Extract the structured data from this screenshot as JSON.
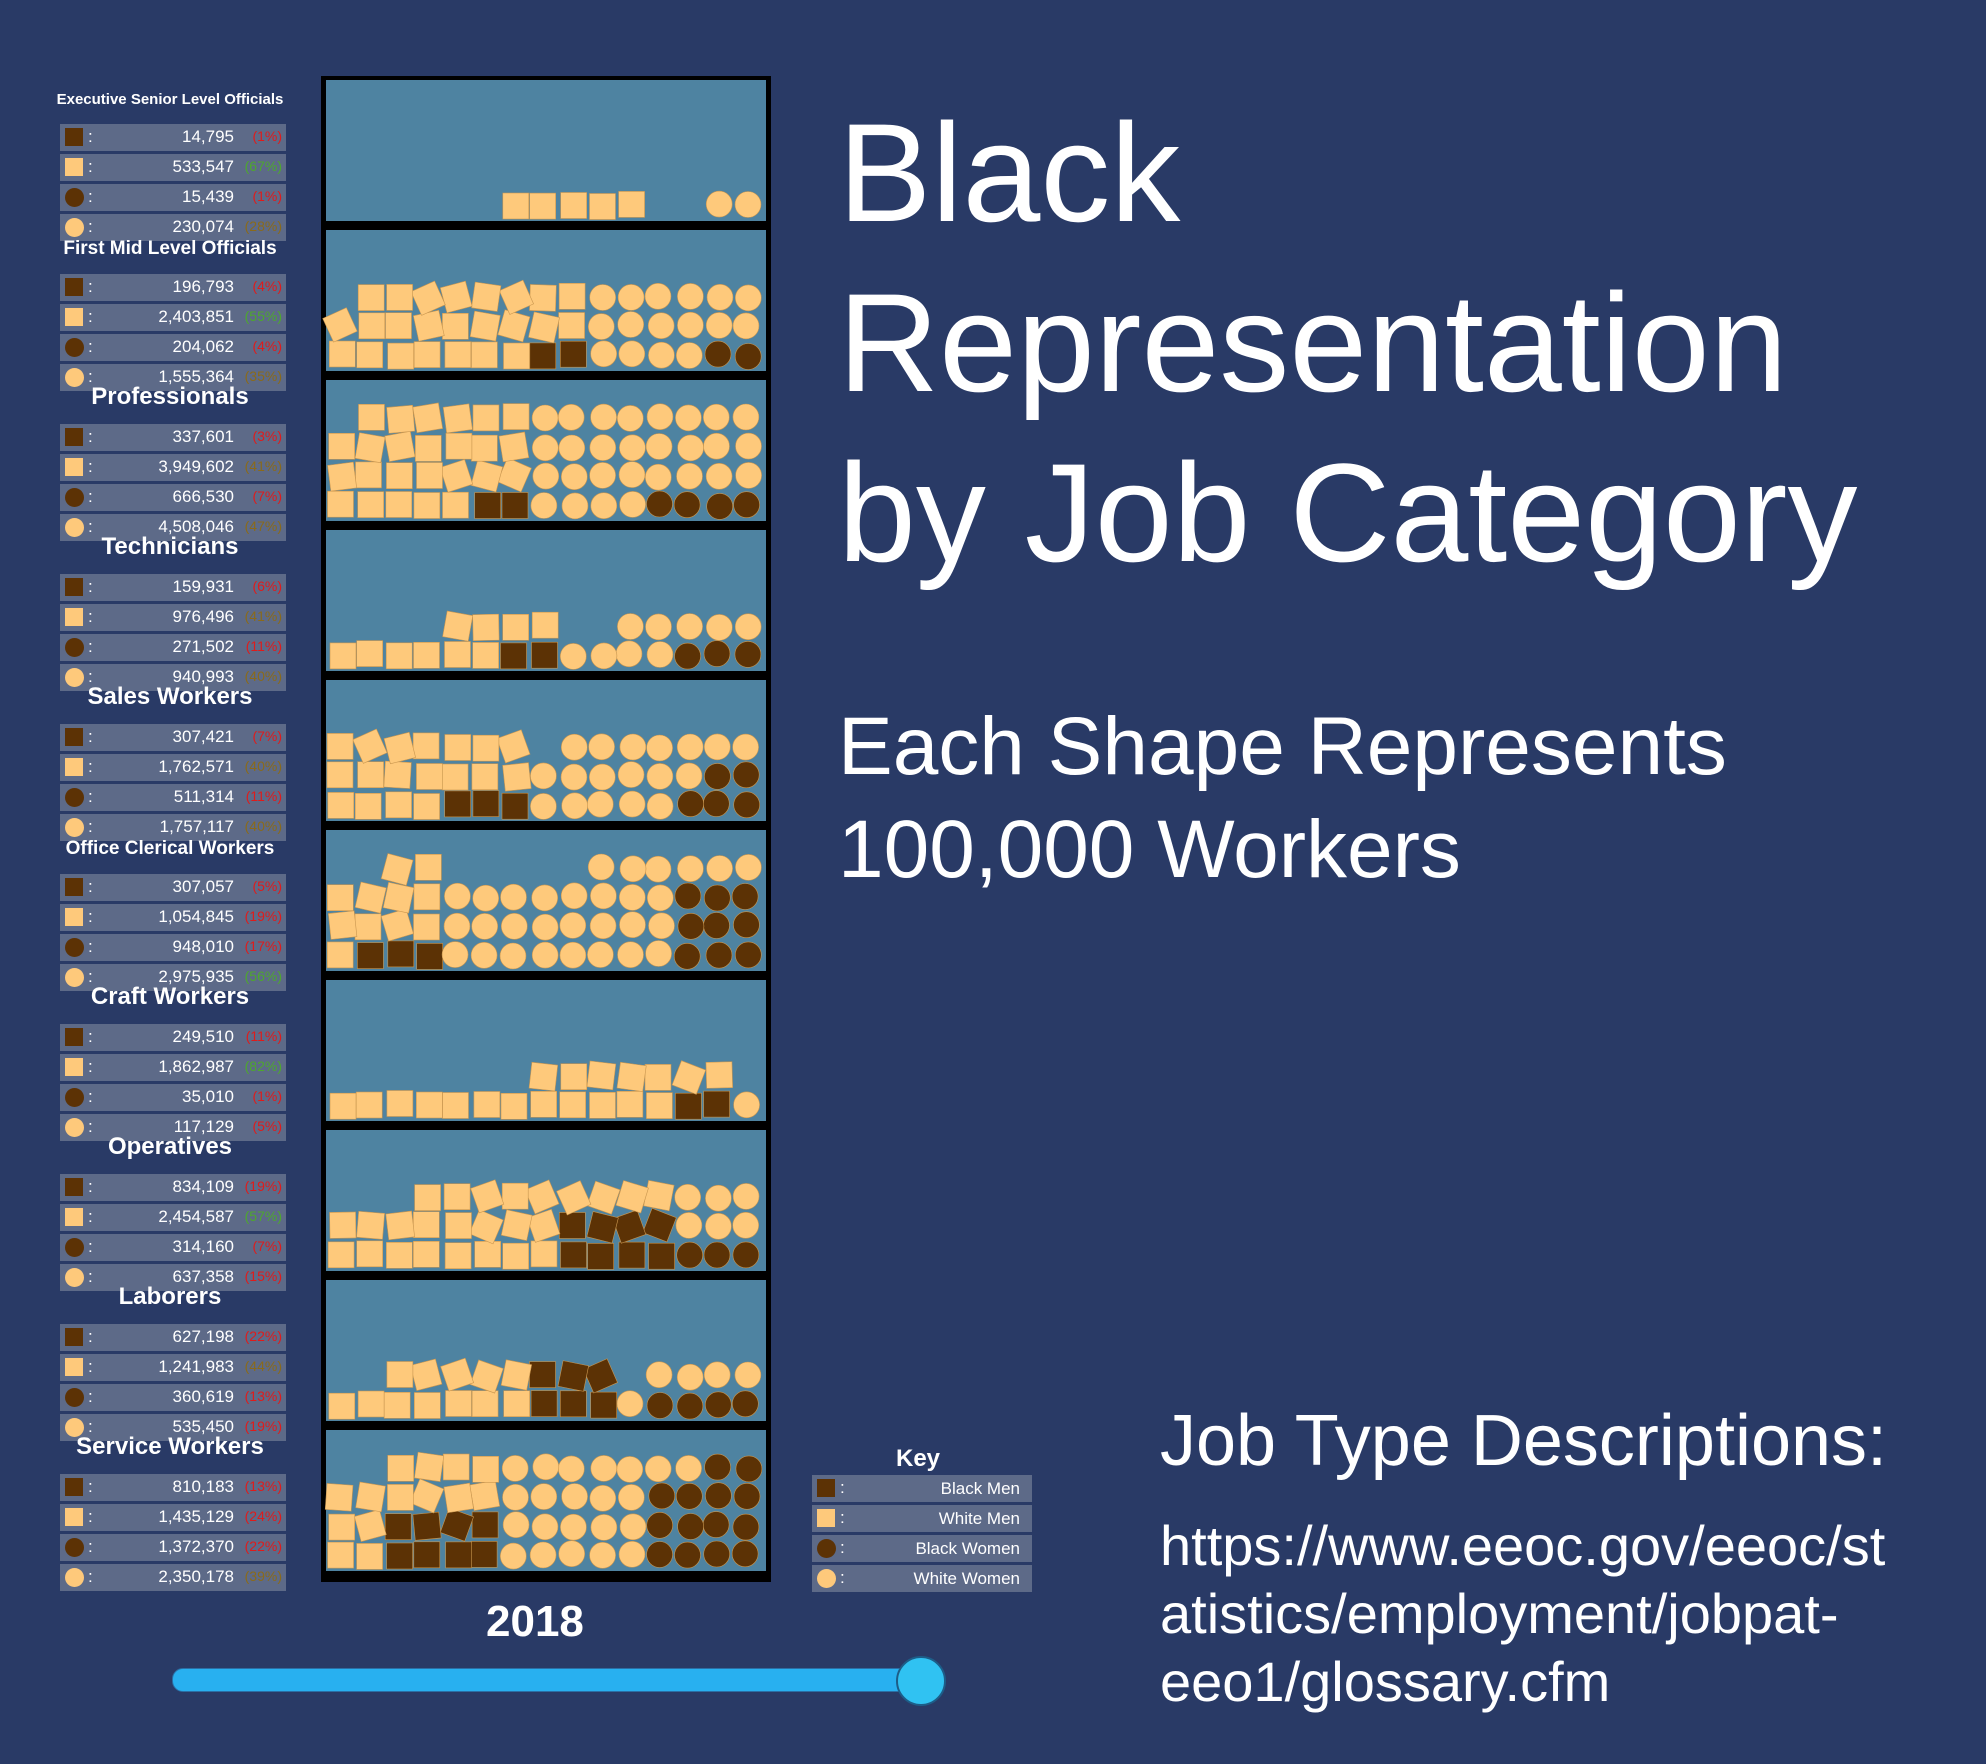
{
  "title": "Black Representation by Job Category",
  "title_lines": [
    "Black",
    "Representation",
    "by Job Category"
  ],
  "subtitle_lines": [
    "Each Shape Represents",
    "100,000 Workers"
  ],
  "job_desc": {
    "heading": "Job Type Descriptions:",
    "url_lines": [
      "https://www.eeoc.gov/eeoc/st",
      "atistics/employment/jobpat-",
      "eeo1/glossary.cfm"
    ]
  },
  "year": "2018",
  "slider": {
    "value": 1.0
  },
  "key": {
    "title": "Key",
    "items": [
      {
        "shape": "square",
        "color": "#5c3205",
        "label": "Black Men"
      },
      {
        "shape": "square",
        "color": "#fec97b",
        "label": "White Men"
      },
      {
        "shape": "circle",
        "color": "#5c3205",
        "label": "Black Women"
      },
      {
        "shape": "circle",
        "color": "#fec97b",
        "label": "White Women"
      }
    ]
  },
  "colors": {
    "background": "#293a66",
    "bin_fill": "#4e83a1",
    "black": "#5c3205",
    "white": "#fec97b",
    "pct_red": "#e01b1b",
    "pct_green": "#4ea72e",
    "pct_olive": "#8a6a1a"
  },
  "chart_data": {
    "type": "physics-pictograph",
    "unit": 100000,
    "series": [
      {
        "name": "Black Men",
        "shape": "square",
        "color": "#5c3205"
      },
      {
        "name": "White Men",
        "shape": "square",
        "color": "#fec97b"
      },
      {
        "name": "Black Women",
        "shape": "circle",
        "color": "#5c3205"
      },
      {
        "name": "White Women",
        "shape": "circle",
        "color": "#fec97b"
      }
    ],
    "categories": [
      {
        "name": "Executive Senior Level Officials",
        "rows": [
          [
            "14,795",
            "(1%)",
            "red"
          ],
          [
            "533,547",
            "(67%)",
            "green"
          ],
          [
            "15,439",
            "(1%)",
            "red"
          ],
          [
            "230,074",
            "(28%)",
            "olive"
          ]
        ],
        "values": [
          14795,
          533547,
          15439,
          230074
        ]
      },
      {
        "name": "First Mid Level Officials",
        "rows": [
          [
            "196,793",
            "(4%)",
            "red"
          ],
          [
            "2,403,851",
            "(55%)",
            "green"
          ],
          [
            "204,062",
            "(4%)",
            "red"
          ],
          [
            "1,555,364",
            "(35%)",
            "olive"
          ]
        ],
        "values": [
          196793,
          2403851,
          204062,
          1555364
        ]
      },
      {
        "name": "Professionals",
        "rows": [
          [
            "337,601",
            "(3%)",
            "red"
          ],
          [
            "3,949,602",
            "(41%)",
            "olive"
          ],
          [
            "666,530",
            "(7%)",
            "red"
          ],
          [
            "4,508,046",
            "(47%)",
            "olive"
          ]
        ],
        "values": [
          337601,
          3949602,
          666530,
          4508046
        ]
      },
      {
        "name": "Technicians",
        "rows": [
          [
            "159,931",
            "(6%)",
            "red"
          ],
          [
            "976,496",
            "(41%)",
            "olive"
          ],
          [
            "271,502",
            "(11%)",
            "red"
          ],
          [
            "940,993",
            "(40%)",
            "olive"
          ]
        ],
        "values": [
          159931,
          976496,
          271502,
          940993
        ]
      },
      {
        "name": "Sales Workers",
        "rows": [
          [
            "307,421",
            "(7%)",
            "red"
          ],
          [
            "1,762,571",
            "(40%)",
            "olive"
          ],
          [
            "511,314",
            "(11%)",
            "red"
          ],
          [
            "1,757,117",
            "(40%)",
            "olive"
          ]
        ],
        "values": [
          307421,
          1762571,
          511314,
          1757117
        ]
      },
      {
        "name": "Office Clerical Workers",
        "rows": [
          [
            "307,057",
            "(5%)",
            "red"
          ],
          [
            "1,054,845",
            "(19%)",
            "red"
          ],
          [
            "948,010",
            "(17%)",
            "red"
          ],
          [
            "2,975,935",
            "(56%)",
            "green"
          ]
        ],
        "values": [
          307057,
          1054845,
          948010,
          2975935
        ]
      },
      {
        "name": "Craft Workers",
        "rows": [
          [
            "249,510",
            "(11%)",
            "red"
          ],
          [
            "1,862,987",
            "(82%)",
            "green"
          ],
          [
            "35,010",
            "(1%)",
            "red"
          ],
          [
            "117,129",
            "(5%)",
            "red"
          ]
        ],
        "values": [
          249510,
          1862987,
          35010,
          117129
        ]
      },
      {
        "name": "Operatives",
        "rows": [
          [
            "834,109",
            "(19%)",
            "red"
          ],
          [
            "2,454,587",
            "(57%)",
            "green"
          ],
          [
            "314,160",
            "(7%)",
            "red"
          ],
          [
            "637,358",
            "(15%)",
            "red"
          ]
        ],
        "values": [
          834109,
          2454587,
          314160,
          637358
        ]
      },
      {
        "name": "Laborers",
        "rows": [
          [
            "627,198",
            "(22%)",
            "red"
          ],
          [
            "1,241,983",
            "(44%)",
            "olive"
          ],
          [
            "360,619",
            "(13%)",
            "red"
          ],
          [
            "535,450",
            "(19%)",
            "red"
          ]
        ],
        "values": [
          627198,
          1241983,
          360619,
          535450
        ]
      },
      {
        "name": "Service Workers",
        "rows": [
          [
            "810,183",
            "(13%)",
            "red"
          ],
          [
            "1,435,129",
            "(24%)",
            "red"
          ],
          [
            "1,372,370",
            "(22%)",
            "red"
          ],
          [
            "2,350,178",
            "(39%)",
            "olive"
          ]
        ],
        "values": [
          810183,
          1435129,
          1372370,
          2350178
        ]
      }
    ]
  }
}
